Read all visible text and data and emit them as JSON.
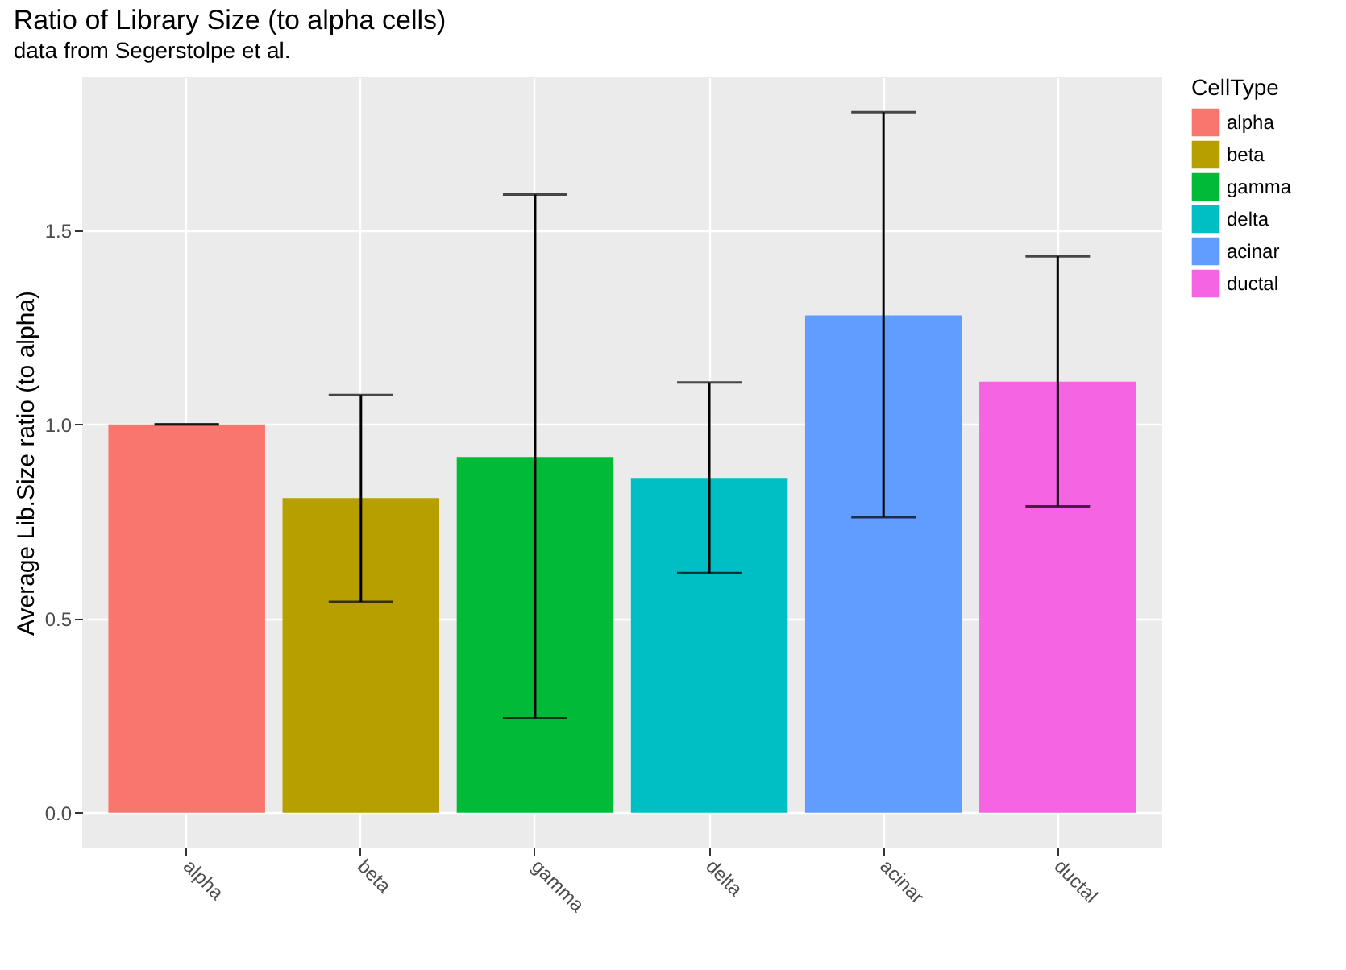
{
  "chart_data": {
    "type": "bar",
    "title": "Ratio of Library Size (to alpha cells)",
    "subtitle": "data from Segerstolpe et al.",
    "ylabel": "Average Lib.Size ratio (to alpha)",
    "legend_title": "CellType",
    "categories": [
      "alpha",
      "beta",
      "gamma",
      "delta",
      "acinar",
      "ductal"
    ],
    "series": [
      {
        "name": "alpha",
        "color": "#f8766d",
        "values": [
          1.0,
          null,
          null,
          null,
          null,
          null
        ],
        "errors": [
          [
            1.0,
            1.0
          ],
          null,
          null,
          null,
          null,
          null
        ]
      },
      {
        "name": "beta",
        "color": "#b79f00",
        "values": [
          null,
          0.81,
          null,
          null,
          null,
          null
        ],
        "errors": [
          null,
          [
            0.543,
            1.076
          ],
          null,
          null,
          null,
          null
        ]
      },
      {
        "name": "gamma",
        "color": "#00ba38",
        "values": [
          null,
          null,
          0.916,
          null,
          null,
          null
        ],
        "errors": [
          null,
          null,
          [
            0.243,
            1.592
          ],
          null,
          null,
          null
        ]
      },
      {
        "name": "delta",
        "color": "#00bfc4",
        "values": [
          null,
          null,
          null,
          0.862,
          null,
          null
        ],
        "errors": [
          null,
          null,
          null,
          [
            0.617,
            1.108
          ],
          null,
          null
        ]
      },
      {
        "name": "acinar",
        "color": "#619cff",
        "values": [
          null,
          null,
          null,
          null,
          1.281,
          null
        ],
        "errors": [
          null,
          null,
          null,
          null,
          [
            0.761,
            1.804
          ],
          null
        ]
      },
      {
        "name": "ductal",
        "color": "#f564e3",
        "values": [
          null,
          null,
          null,
          null,
          null,
          1.11
        ],
        "errors": [
          null,
          null,
          null,
          null,
          null,
          [
            0.789,
            1.433
          ]
        ]
      }
    ],
    "ylim": [
      -0.09,
      1.894
    ],
    "yticks": [
      {
        "value": 0,
        "label": "0.0"
      },
      0.5,
      {
        "value": 1,
        "label": "1.0"
      },
      1.5
    ],
    "grid": true,
    "legend": "right"
  }
}
